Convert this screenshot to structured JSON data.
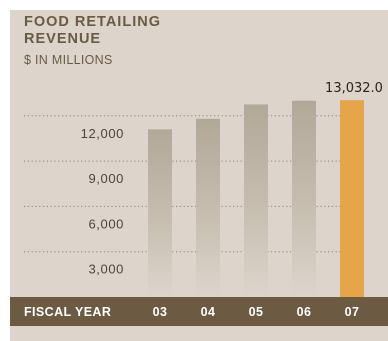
{
  "chart_data": {
    "type": "bar",
    "title_line1": "FOOD RETAILING",
    "title_line2": "REVENUE",
    "subtitle": "$ IN MILLIONS",
    "xlabel": "FISCAL YEAR",
    "ylabel": "",
    "categories": [
      "03",
      "04",
      "05",
      "06",
      "07"
    ],
    "values": [
      11100,
      11800,
      12750,
      13000,
      13032.0
    ],
    "highlight_index": 4,
    "data_labels": [
      {
        "index": 4,
        "text": "13,032.0"
      }
    ],
    "yticks": [
      3000,
      6000,
      9000,
      12000
    ],
    "ytick_labels": [
      "3,000",
      "6,000",
      "9,000",
      "12,000"
    ],
    "ylim": [
      0,
      14500
    ],
    "grid": "dotted horizontal",
    "colors": {
      "bar": "#b4a999",
      "bar_highlight": "#e5a64a",
      "panel": "#ddd5cb",
      "axis_band": "#6c5a43",
      "title": "#6b5a43"
    }
  }
}
